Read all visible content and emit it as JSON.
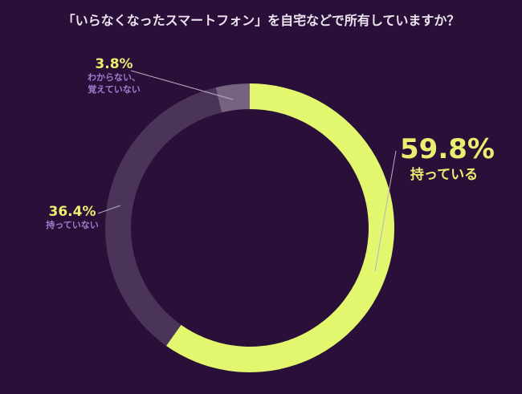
{
  "chart_data": {
    "type": "pie",
    "title": "「いらなくなったスマートフォン」を自宅などで所有していますか？",
    "categories": [
      "持っている",
      "持っていない",
      "わからない、\n覚えていない"
    ],
    "values": [
      59.8,
      36.4,
      3.8
    ],
    "value_labels": [
      "59.8%",
      "36.4%",
      "3.8%"
    ],
    "colors": [
      "#e2f66e",
      "#4a3459",
      "#75637f"
    ]
  }
}
